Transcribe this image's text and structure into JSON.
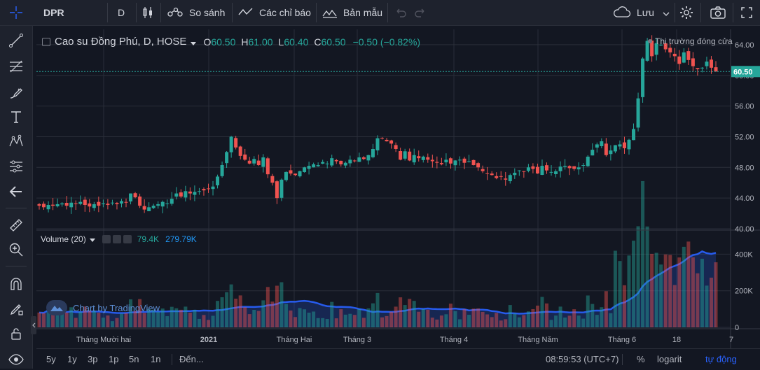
{
  "toolbar": {
    "symbol": "DPR",
    "interval": "D",
    "compare_label": "So sánh",
    "indicators_label": "Các chỉ báo",
    "templates_label": "Bản mẫu",
    "save_label": "Lưu"
  },
  "legend": {
    "name": "Cao su Đồng Phú, D, HOSE",
    "o_label": "O",
    "o_value": "60.50",
    "h_label": "H",
    "h_value": "61.00",
    "l_label": "L",
    "l_value": "60.40",
    "c_label": "C",
    "c_value": "60.50",
    "change": "−0.50 (−0.82%)",
    "market_status": "Thị trường đóng cửa"
  },
  "volume_legend": {
    "label": "Volume (20)",
    "volume": "79.4K",
    "ma": "279.79K"
  },
  "watermark": "Chart by TradingView",
  "price_axis": {
    "ticks": [
      "64.00",
      "60.00",
      "56.00",
      "52.00",
      "48.00",
      "44.00",
      "40.00"
    ],
    "last_price": "60.50"
  },
  "volume_axis": {
    "ticks": [
      "400K",
      "200K",
      "0"
    ]
  },
  "time_axis": {
    "ticks": [
      "Tháng Mười hai",
      "2021",
      "Tháng Hai",
      "Tháng 3",
      "Tháng 4",
      "Tháng Năm",
      "Tháng 6",
      "18",
      "7"
    ]
  },
  "bottom": {
    "ranges": [
      "5y",
      "1y",
      "3p",
      "1p",
      "5n",
      "1n"
    ],
    "goto": "Đến...",
    "time": "08:59:53 (UTC+7)",
    "percent": "%",
    "log": "logarit",
    "auto": "tự động"
  },
  "colors": {
    "up": "#26a69a",
    "down": "#ef5350",
    "volume_ma": "#2962ff",
    "accent": "#2962ff",
    "background": "#131722"
  },
  "chart_data": {
    "type": "candlestick",
    "ylim": [
      40,
      66
    ],
    "volume_ylim": [
      0,
      520000
    ],
    "closes": [
      43.0,
      42.8,
      43.1,
      43.0,
      43.2,
      43.3,
      43.0,
      43.4,
      43.2,
      43.5,
      43.1,
      42.9,
      43.2,
      43.0,
      43.3,
      43.1,
      43.4,
      43.2,
      43.6,
      43.4,
      44.6,
      44.1,
      43.0,
      42.5,
      42.8,
      43.0,
      43.2,
      43.5,
      43.3,
      43.9,
      44.6,
      44.2,
      44.9,
      44.6,
      44.8,
      44.9,
      45.0,
      45.2,
      45.5,
      46.8,
      48.3,
      50.0,
      52.0,
      50.6,
      49.5,
      49.0,
      48.5,
      49.1,
      48.3,
      49.3,
      47.1,
      46.0,
      44.0,
      46.4,
      47.4,
      47.2,
      47.0,
      47.5,
      48.0,
      48.2,
      48.4,
      48.3,
      48.7,
      48.5,
      49.2,
      48.8,
      48.4,
      48.6,
      49.0,
      48.8,
      49.3,
      49.1,
      49.6,
      50.4,
      51.8,
      51.8,
      51.4,
      51.1,
      50.4,
      49.0,
      50.1,
      48.9,
      49.6,
      49.2,
      49.4,
      49.0,
      48.8,
      48.6,
      48.4,
      49.0,
      48.5,
      48.9,
      49.0,
      48.6,
      48.8,
      48.3,
      48.0,
      47.5,
      47.2,
      47.0,
      46.6,
      46.8,
      46.4,
      47.0,
      47.3,
      47.6,
      47.5,
      48.0,
      47.8,
      47.2,
      48.2,
      47.6,
      47.4,
      47.5,
      48.1,
      48.2,
      47.9,
      47.8,
      48.0,
      48.3,
      49.4,
      50.3,
      51.0,
      51.4,
      49.6,
      50.2,
      50.9,
      51.0,
      50.5,
      51.6,
      53.0,
      57.0,
      62.2,
      64.5,
      62.5,
      64.2,
      64.0,
      63.4,
      63.0,
      62.5,
      61.5,
      63.0,
      62.0,
      61.2,
      60.8,
      61.0,
      61.8,
      61.0,
      60.5
    ]
  }
}
